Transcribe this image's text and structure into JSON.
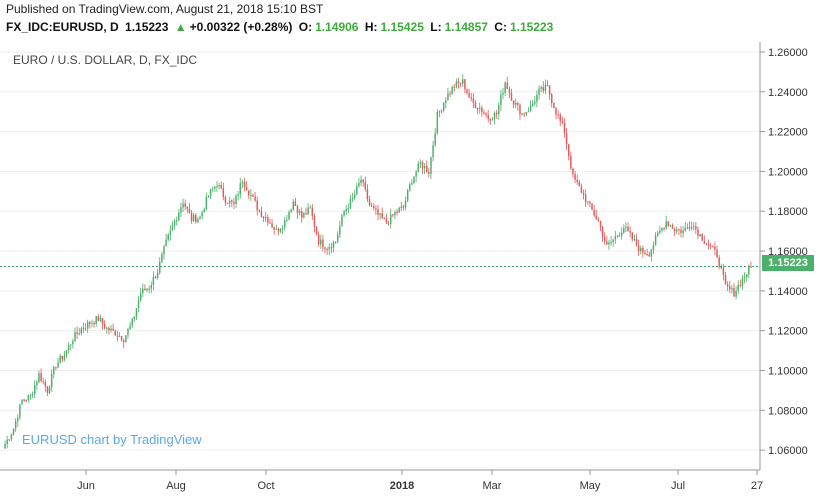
{
  "header": {
    "published": "Published on TradingView.com, August 21, 2018 15:10 BST",
    "symbol": "FX_IDC:EURUSD, D",
    "last": "1.15223",
    "change_icon": "triangle-up-icon",
    "change": "+0.00322 (+0.28%)",
    "o_label": "O:",
    "o_value": "1.14906",
    "h_label": "H:",
    "h_value": "1.15425",
    "l_label": "L:",
    "l_value": "1.14857",
    "c_label": "C:",
    "c_value": "1.15223"
  },
  "chart_title": "EURO / U.S. DOLLAR, D, FX_IDC",
  "watermark": "EURUSD chart by TradingView",
  "current_price_label": "1.15223",
  "colors": {
    "up": "#4caf6a",
    "down": "#e05a5a",
    "price_line": "#3ca06a",
    "grid": "#eeeeee",
    "watermark": "#5aa9e6"
  },
  "chart_data": {
    "type": "candlestick",
    "title": "EURO / U.S. DOLLAR, D, FX_IDC",
    "y_ticks": [
      "1.26000",
      "1.24000",
      "1.22000",
      "1.20000",
      "1.18000",
      "1.16000",
      "1.14000",
      "1.12000",
      "1.10000",
      "1.08000",
      "1.06000"
    ],
    "ylim": [
      1.05,
      1.265
    ],
    "x_ticks": [
      "Jun",
      "Aug",
      "Oct",
      "2018",
      "Mar",
      "May",
      "Jul",
      "27"
    ],
    "current_price": 1.15223,
    "series_close": [
      1.063,
      1.071,
      1.085,
      1.087,
      1.098,
      1.09,
      1.103,
      1.108,
      1.116,
      1.121,
      1.124,
      1.126,
      1.121,
      1.119,
      1.116,
      1.124,
      1.139,
      1.142,
      1.15,
      1.164,
      1.175,
      1.185,
      1.176,
      1.177,
      1.188,
      1.194,
      1.186,
      1.183,
      1.196,
      1.188,
      1.18,
      1.176,
      1.17,
      1.175,
      1.185,
      1.177,
      1.181,
      1.165,
      1.162,
      1.165,
      1.18,
      1.186,
      1.196,
      1.183,
      1.178,
      1.174,
      1.179,
      1.182,
      1.196,
      1.204,
      1.2,
      1.228,
      1.237,
      1.243,
      1.245,
      1.235,
      1.232,
      1.227,
      1.229,
      1.245,
      1.235,
      1.229,
      1.232,
      1.24,
      1.242,
      1.23,
      1.22,
      1.197,
      1.19,
      1.182,
      1.175,
      1.162,
      1.167,
      1.172,
      1.166,
      1.16,
      1.159,
      1.168,
      1.175,
      1.171,
      1.17,
      1.174,
      1.168,
      1.163,
      1.158,
      1.142,
      1.139,
      1.146,
      1.152
    ]
  }
}
